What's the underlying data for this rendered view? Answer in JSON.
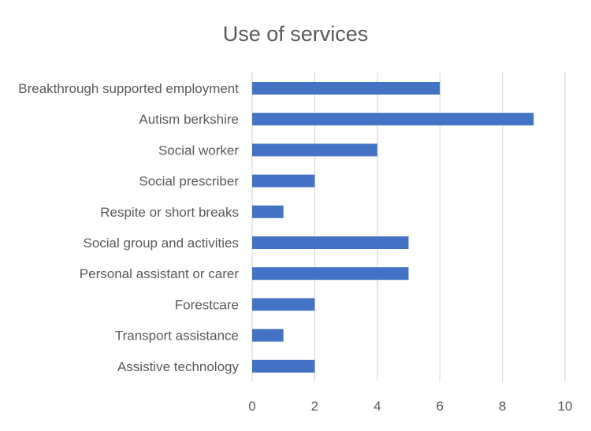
{
  "chart_data": {
    "type": "bar",
    "orientation": "horizontal",
    "title": "Use of services",
    "xlabel": "",
    "ylabel": "",
    "categories": [
      "Breakthrough supported employment",
      "Autism berkshire",
      "Social worker",
      "Social prescriber",
      "Respite or short breaks",
      "Social group and activities",
      "Personal assistant or carer",
      "Forestcare",
      "Transport assistance",
      "Assistive technology"
    ],
    "values": [
      6,
      9,
      4,
      2,
      1,
      5,
      5,
      2,
      1,
      2
    ],
    "xlim": [
      0,
      10
    ],
    "xticks": [
      0,
      2,
      4,
      6,
      8,
      10
    ],
    "grid": "vertical",
    "legend": "none",
    "bar_color": "#4472C4",
    "grid_color": "#D9D9D9",
    "text_color": "#595959"
  }
}
